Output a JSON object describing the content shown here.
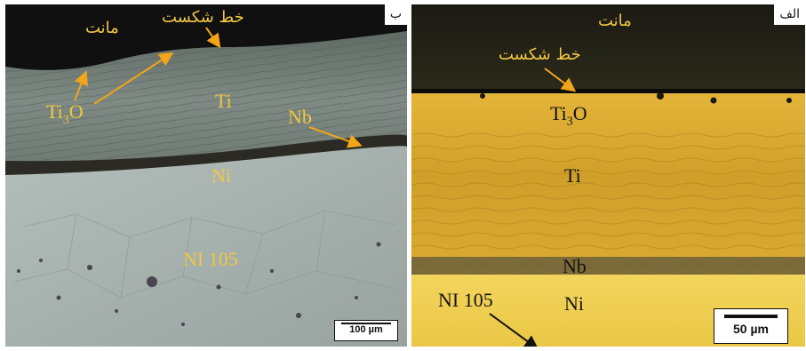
{
  "panel_b": {
    "tag": "ب",
    "mount_label": "مانت",
    "fracture_line_label": "خط شکست",
    "oxide_label_main": "Ti",
    "oxide_label_sub": "3",
    "oxide_label_tail": "O",
    "ti_label": "Ti",
    "nb_label": "Nb",
    "ni_label": "Ni",
    "alloy_label": "NI 105",
    "scale_label": "100 µm"
  },
  "panel_a": {
    "tag": "الف",
    "mount_label": "مانت",
    "fracture_line_label": "خط شکست",
    "oxide_label_main": "Ti",
    "oxide_label_sub": "3",
    "oxide_label_tail": "O",
    "ti_label": "Ti",
    "nb_label": "Nb",
    "ni_label": "Ni",
    "alloy_label": "NI 105",
    "scale_label": "50 µm"
  },
  "colors": {
    "label_yellow": "#f2c744",
    "arrow_orange": "#f2a51a",
    "mount_dark": "#15140f",
    "ti_gold": "#d9a72c",
    "ni_pale_gold": "#f0cd4e",
    "nb_band": "#7a6a3a",
    "ni_grey": "#a7b2ae"
  }
}
